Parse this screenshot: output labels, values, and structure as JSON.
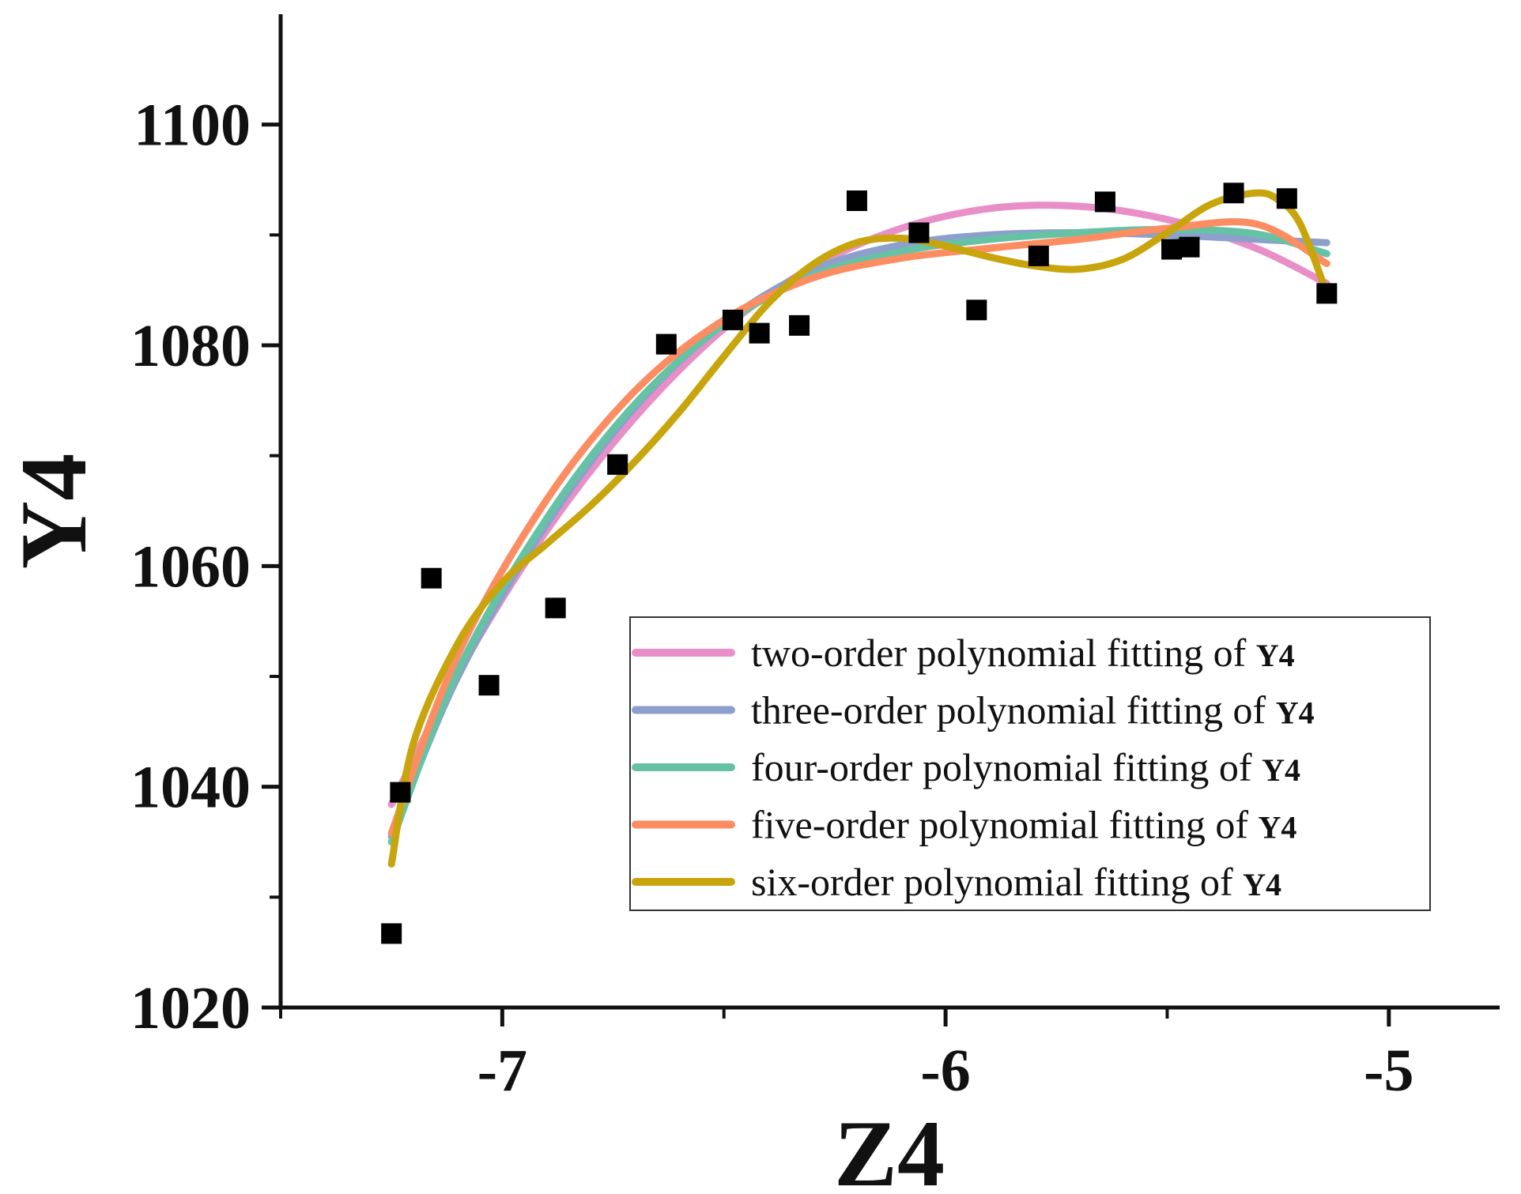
{
  "chart_data": {
    "type": "scatter",
    "xlabel": "Z4",
    "ylabel": "Y4",
    "xlim": [
      -7.5,
      -4.75
    ],
    "ylim": [
      1020,
      1110
    ],
    "x_ticks": [
      -7,
      -6,
      -5
    ],
    "x_tick_labels": [
      "-7",
      "-6",
      "-5"
    ],
    "x_minor_ticks": [
      -7.5,
      -6.5,
      -5.5
    ],
    "y_ticks": [
      1020,
      1040,
      1060,
      1080,
      1100
    ],
    "y_tick_labels": [
      "1020",
      "1040",
      "1060",
      "1080",
      "1100"
    ],
    "y_minor_ticks": [
      1030,
      1050,
      1070,
      1090
    ],
    "grid": false,
    "legend_position": "lower-right",
    "points": {
      "x": [
        -7.25,
        -7.23,
        -7.16,
        -7.03,
        -6.88,
        -6.74,
        -6.63,
        -6.48,
        -6.42,
        -6.33,
        -6.2,
        -6.06,
        -5.93,
        -5.79,
        -5.64,
        -5.49,
        -5.45,
        -5.35,
        -5.23,
        -5.14
      ],
      "y": [
        1026.7,
        1039.5,
        1058.9,
        1049.2,
        1056.2,
        1069.2,
        1080.1,
        1082.3,
        1081.1,
        1081.8,
        1093.1,
        1090.2,
        1083.2,
        1088.1,
        1093.0,
        1088.7,
        1088.9,
        1093.8,
        1093.3,
        1084.7
      ]
    },
    "series": [
      {
        "name": "two-order polynomial fitting of",
        "bold_suffix": "Y4",
        "color": "#E88FC8",
        "x": [
          -7.25,
          -7.1,
          -6.9,
          -6.7,
          -6.5,
          -6.3,
          -6.1,
          -5.9,
          -5.7,
          -5.5,
          -5.3,
          -5.14
        ],
        "y": [
          1038.4,
          1050.3,
          1063.2,
          1073.5,
          1081.5,
          1087.1,
          1090.6,
          1092.4,
          1092.6,
          1091.4,
          1088.8,
          1085.6
        ]
      },
      {
        "name": "three-order polynomial fitting of",
        "bold_suffix": "Y4",
        "color": "#8DA0CB",
        "x": [
          -7.25,
          -7.1,
          -6.9,
          -6.7,
          -6.5,
          -6.3,
          -6.1,
          -5.9,
          -5.7,
          -5.5,
          -5.3,
          -5.14
        ],
        "y": [
          1035.5,
          1050.0,
          1063.8,
          1074.4,
          1082.0,
          1086.8,
          1089.1,
          1090.0,
          1090.2,
          1090.0,
          1089.6,
          1089.3
        ]
      },
      {
        "name": "four-order polynomial fitting of",
        "bold_suffix": "Y4",
        "color": "#66C2A5",
        "x": [
          -7.25,
          -7.1,
          -6.9,
          -6.7,
          -6.5,
          -6.3,
          -6.1,
          -5.9,
          -5.7,
          -5.5,
          -5.3,
          -5.14
        ],
        "y": [
          1035.0,
          1050.5,
          1064.3,
          1074.7,
          1081.9,
          1086.3,
          1088.5,
          1089.6,
          1090.2,
          1090.5,
          1090.1,
          1088.3
        ]
      },
      {
        "name": "five-order polynomial fitting of",
        "bold_suffix": "Y4",
        "color": "#FC8D62",
        "x": [
          -7.25,
          -7.1,
          -6.9,
          -6.7,
          -6.5,
          -6.3,
          -6.1,
          -5.9,
          -5.7,
          -5.5,
          -5.3,
          -5.14
        ],
        "y": [
          1035.8,
          1052.0,
          1066.0,
          1075.9,
          1082.3,
          1086.1,
          1087.9,
          1088.8,
          1089.6,
          1090.6,
          1091.0,
          1087.4
        ]
      },
      {
        "name": "six-order polynomial fitting of",
        "bold_suffix": "Y4",
        "color": "#C8A50D",
        "x": [
          -7.25,
          -7.2,
          -7.1,
          -7.0,
          -6.9,
          -6.8,
          -6.7,
          -6.6,
          -6.5,
          -6.4,
          -6.3,
          -6.2,
          -6.1,
          -6.0,
          -5.9,
          -5.8,
          -5.7,
          -5.6,
          -5.5,
          -5.4,
          -5.3,
          -5.25,
          -5.2,
          -5.14
        ],
        "y": [
          1033.0,
          1044.0,
          1053.0,
          1058.5,
          1062.0,
          1065.5,
          1069.5,
          1074.0,
          1079.0,
          1083.8,
          1087.3,
          1089.3,
          1089.7,
          1089.0,
          1088.0,
          1087.2,
          1086.9,
          1087.8,
          1090.2,
          1092.8,
          1093.8,
          1093.2,
          1091.0,
          1084.7
        ]
      }
    ]
  }
}
